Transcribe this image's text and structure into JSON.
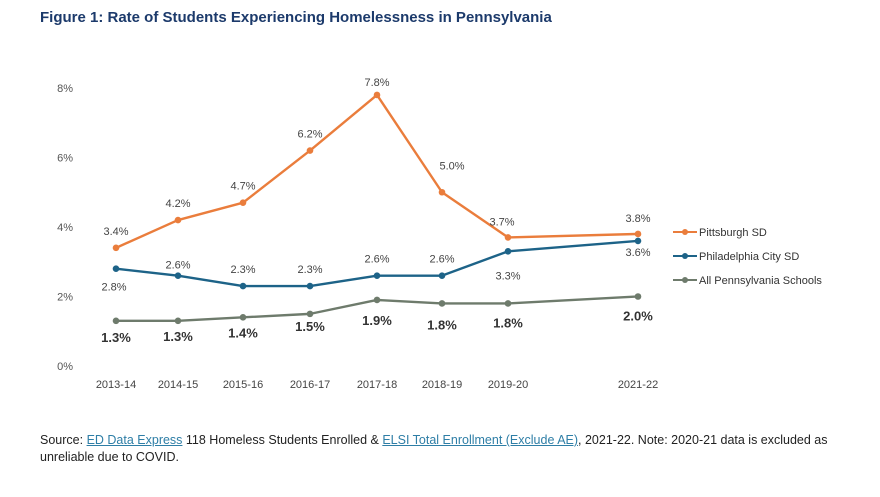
{
  "title": "Figure 1: Rate of Students Experiencing Homelessness in Pennsylvania",
  "chart_data": {
    "type": "line",
    "categories": [
      "2013-14",
      "2014-15",
      "2015-16",
      "2016-17",
      "2017-18",
      "2018-19",
      "2019-20",
      "2021-22"
    ],
    "y_ticks": [
      "0%",
      "2%",
      "4%",
      "6%",
      "8%"
    ],
    "ylim": [
      0,
      8
    ],
    "series": [
      {
        "name": "Pittsburgh SD",
        "color": "#ea7d3c",
        "values": [
          3.4,
          4.2,
          4.7,
          6.2,
          7.8,
          5.0,
          3.7,
          3.8
        ],
        "labels": [
          "3.4%",
          "4.2%",
          "4.7%",
          "6.2%",
          "7.8%",
          "5.0%",
          "3.7%",
          "3.8%"
        ]
      },
      {
        "name": "Philadelphia City SD",
        "color": "#1d6388",
        "values": [
          2.8,
          2.6,
          2.3,
          2.3,
          2.6,
          2.6,
          3.3,
          3.6
        ],
        "labels": [
          "2.8%",
          "2.6%",
          "2.3%",
          "2.3%",
          "2.6%",
          "2.6%",
          "3.3%",
          "3.6%"
        ]
      },
      {
        "name": "All Pennsylvania Schools",
        "color": "#6e7b6c",
        "values": [
          1.3,
          1.3,
          1.4,
          1.5,
          1.9,
          1.8,
          1.8,
          2.0
        ],
        "labels": [
          "1.3%",
          "1.3%",
          "1.4%",
          "1.5%",
          "1.9%",
          "1.8%",
          "1.8%",
          "2.0%"
        ]
      }
    ],
    "legend_position": "right",
    "grid": false
  },
  "source": {
    "prefix": "Source: ",
    "link1": "ED Data Express",
    "middle": " 118 Homeless Students Enrolled & ",
    "link2": "ELSI Total Enrollment (Exclude AE)",
    "suffix": ", 2021-22. Note: 2020-21 data is excluded as unreliable due to COVID."
  }
}
